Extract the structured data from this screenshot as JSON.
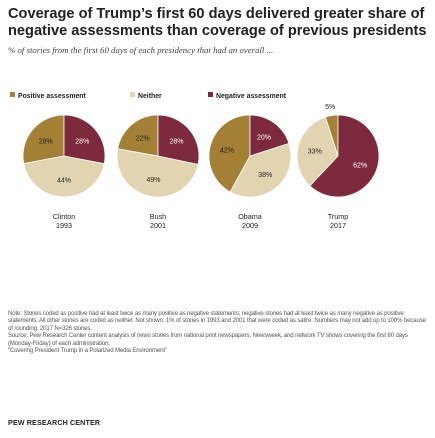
{
  "chart_data": {
    "type": "pie",
    "title": "Coverage of Trump’s first 60 days delivered greater share of negative assessments than coverage of previous presidents",
    "subtitle": "% of stories from the first 60 days of each presidency that had an overall ...",
    "legend": [
      {
        "label": "Positive assessment",
        "color": "#a47f36"
      },
      {
        "label": "Neither",
        "color": "#e2d4b0"
      },
      {
        "label": "Negative assessment",
        "color": "#7d2a3e"
      }
    ],
    "legend_placement": "top",
    "categories": [
      "Positive assessment",
      "Neither",
      "Negative assessment"
    ],
    "pies": [
      {
        "name": "Clinton",
        "year": "1993",
        "values": [
          28,
          44,
          28
        ],
        "labels": [
          "28%",
          "44%",
          "28%"
        ]
      },
      {
        "name": "Bush",
        "year": "2001",
        "values": [
          22,
          49,
          28
        ],
        "labels": [
          "22%",
          "49%",
          "28%"
        ]
      },
      {
        "name": "Obama",
        "year": "2009",
        "values": [
          42,
          38,
          20
        ],
        "labels": [
          "42%",
          "38%",
          "20%"
        ]
      },
      {
        "name": "Trump",
        "year": "2017",
        "values": [
          5,
          33,
          62
        ],
        "labels": [
          "5%",
          "33%",
          "62%"
        ]
      }
    ]
  },
  "notes": {
    "note": "Note: Stories coded as positive had at least twice as many positive as negative statements; negative stories had at least twice as many negative as positive statements. All other stories are coded as neither. Not shown: 1% of stories in 1993 and 2001 that were coded as satire. Numbers may not add up to 100% because of rounding. 2017 N=326 stories.",
    "source": "Source: Pew Research Center content analysis of news stories from national print newspapers, Newsweek, and network TV shows covering the first 60 days (Monday-Friday) of each administration.",
    "report": "“Covering President Trump in a Polarized Media Environment”",
    "brand": "PEW RESEARCH CENTER"
  }
}
